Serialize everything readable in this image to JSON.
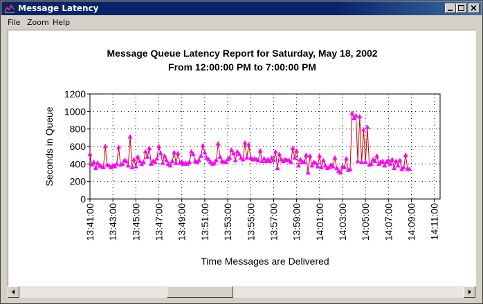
{
  "window": {
    "title": "Message Latency"
  },
  "menu": [
    "File",
    "Zoom",
    "Help"
  ],
  "colors": {
    "titlebar": "#0a246a",
    "series_line": "#cc0000",
    "series_marker": "#ff00ff"
  },
  "chart_data": {
    "type": "line",
    "title": "Message Queue Latency Report for Saturday, May 18, 2002",
    "subtitle": "From 12:00:00 PM to 7:00:00 PM",
    "xlabel": "Time Messages are Delivered",
    "ylabel": "Seconds in Queue",
    "ylim": [
      0,
      1200
    ],
    "yticks": [
      "0",
      "200",
      "400",
      "600",
      "800",
      "1000",
      "1200"
    ],
    "xlim": [
      "13:41:00",
      "14:11:30"
    ],
    "xticks": [
      "13:41:00",
      "13:43:00",
      "13:45:00",
      "13:47:00",
      "13:49:00",
      "13:51:00",
      "13:53:00",
      "13:55:00",
      "13:57:00",
      "13:59:00",
      "14:01:00",
      "14:03:00",
      "14:05:00",
      "14:07:00",
      "14:09:00",
      "14:11:00"
    ],
    "grid": true,
    "series": [
      {
        "values": [
          [
            "13:41:00",
            510
          ],
          [
            "13:41:10",
            390
          ],
          [
            "13:41:20",
            420
          ],
          [
            "13:41:30",
            350
          ],
          [
            "13:41:40",
            410
          ],
          [
            "13:41:50",
            380
          ],
          [
            "13:42:00",
            370
          ],
          [
            "13:42:10",
            360
          ],
          [
            "13:42:20",
            600
          ],
          [
            "13:42:30",
            390
          ],
          [
            "13:42:40",
            380
          ],
          [
            "13:42:50",
            360
          ],
          [
            "13:43:00",
            380
          ],
          [
            "13:43:10",
            370
          ],
          [
            "13:43:20",
            400
          ],
          [
            "13:43:30",
            590
          ],
          [
            "13:43:40",
            390
          ],
          [
            "13:43:50",
            400
          ],
          [
            "13:44:00",
            440
          ],
          [
            "13:44:10",
            430
          ],
          [
            "13:44:20",
            380
          ],
          [
            "13:44:30",
            710
          ],
          [
            "13:44:40",
            360
          ],
          [
            "13:44:50",
            450
          ],
          [
            "13:45:00",
            370
          ],
          [
            "13:45:10",
            480
          ],
          [
            "13:45:20",
            430
          ],
          [
            "13:45:30",
            400
          ],
          [
            "13:45:40",
            420
          ],
          [
            "13:45:50",
            540
          ],
          [
            "13:46:00",
            480
          ],
          [
            "13:46:10",
            580
          ],
          [
            "13:46:20",
            400
          ],
          [
            "13:46:30",
            430
          ],
          [
            "13:46:40",
            420
          ],
          [
            "13:46:50",
            460
          ],
          [
            "13:47:00",
            600
          ],
          [
            "13:47:10",
            520
          ],
          [
            "13:47:20",
            410
          ],
          [
            "13:47:30",
            490
          ],
          [
            "13:47:40",
            440
          ],
          [
            "13:47:50",
            400
          ],
          [
            "13:48:00",
            380
          ],
          [
            "13:48:10",
            430
          ],
          [
            "13:48:20",
            530
          ],
          [
            "13:48:30",
            410
          ],
          [
            "13:48:40",
            520
          ],
          [
            "13:48:50",
            410
          ],
          [
            "13:49:00",
            420
          ],
          [
            "13:49:10",
            400
          ],
          [
            "13:49:20",
            410
          ],
          [
            "13:49:30",
            400
          ],
          [
            "13:49:40",
            420
          ],
          [
            "13:49:50",
            540
          ],
          [
            "13:50:00",
            510
          ],
          [
            "13:50:10",
            430
          ],
          [
            "13:50:20",
            420
          ],
          [
            "13:50:30",
            440
          ],
          [
            "13:50:40",
            490
          ],
          [
            "13:50:50",
            610
          ],
          [
            "13:51:00",
            530
          ],
          [
            "13:51:10",
            470
          ],
          [
            "13:51:20",
            450
          ],
          [
            "13:51:30",
            420
          ],
          [
            "13:51:40",
            400
          ],
          [
            "13:51:50",
            410
          ],
          [
            "13:52:00",
            440
          ],
          [
            "13:52:10",
            630
          ],
          [
            "13:52:20",
            480
          ],
          [
            "13:52:30",
            430
          ],
          [
            "13:52:40",
            420
          ],
          [
            "13:52:50",
            420
          ],
          [
            "13:53:00",
            450
          ],
          [
            "13:53:10",
            470
          ],
          [
            "13:53:20",
            560
          ],
          [
            "13:53:30",
            520
          ],
          [
            "13:53:40",
            440
          ],
          [
            "13:53:50",
            540
          ],
          [
            "13:54:00",
            510
          ],
          [
            "13:54:10",
            470
          ],
          [
            "13:54:20",
            450
          ],
          [
            "13:54:30",
            640
          ],
          [
            "13:54:40",
            470
          ],
          [
            "13:54:50",
            620
          ],
          [
            "13:55:00",
            470
          ],
          [
            "13:55:10",
            450
          ],
          [
            "13:55:20",
            460
          ],
          [
            "13:55:30",
            450
          ],
          [
            "13:55:40",
            440
          ],
          [
            "13:55:50",
            550
          ],
          [
            "13:56:00",
            430
          ],
          [
            "13:56:10",
            460
          ],
          [
            "13:56:20",
            430
          ],
          [
            "13:56:30",
            450
          ],
          [
            "13:56:40",
            430
          ],
          [
            "13:56:50",
            470
          ],
          [
            "13:57:00",
            440
          ],
          [
            "13:57:10",
            540
          ],
          [
            "13:57:20",
            350
          ],
          [
            "13:57:30",
            510
          ],
          [
            "13:57:40",
            450
          ],
          [
            "13:57:50",
            430
          ],
          [
            "13:58:00",
            450
          ],
          [
            "13:58:10",
            440
          ],
          [
            "13:58:20",
            440
          ],
          [
            "13:58:30",
            420
          ],
          [
            "13:58:40",
            580
          ],
          [
            "13:58:50",
            470
          ],
          [
            "13:59:00",
            550
          ],
          [
            "13:59:10",
            380
          ],
          [
            "13:59:20",
            450
          ],
          [
            "13:59:30",
            420
          ],
          [
            "13:59:40",
            420
          ],
          [
            "13:59:50",
            500
          ],
          [
            "14:00:00",
            300
          ],
          [
            "14:00:10",
            490
          ],
          [
            "14:00:20",
            380
          ],
          [
            "14:00:30",
            420
          ],
          [
            "14:00:40",
            410
          ],
          [
            "14:00:50",
            370
          ],
          [
            "14:01:00",
            490
          ],
          [
            "14:01:10",
            360
          ],
          [
            "14:01:20",
            440
          ],
          [
            "14:01:30",
            380
          ],
          [
            "14:01:40",
            350
          ],
          [
            "14:01:50",
            360
          ],
          [
            "14:02:00",
            390
          ],
          [
            "14:02:10",
            370
          ],
          [
            "14:02:20",
            470
          ],
          [
            "14:02:30",
            350
          ],
          [
            "14:02:40",
            320
          ],
          [
            "14:02:50",
            300
          ],
          [
            "14:03:00",
            370
          ],
          [
            "14:03:10",
            360
          ],
          [
            "14:03:20",
            460
          ],
          [
            "14:03:30",
            330
          ],
          [
            "14:03:40",
            340
          ],
          [
            "14:03:50",
            980
          ],
          [
            "14:04:00",
            920
          ],
          [
            "14:04:10",
            950
          ],
          [
            "14:04:20",
            430
          ],
          [
            "14:04:30",
            940
          ],
          [
            "14:04:40",
            420
          ],
          [
            "14:04:50",
            790
          ],
          [
            "14:05:00",
            420
          ],
          [
            "14:05:10",
            820
          ],
          [
            "14:05:20",
            390
          ],
          [
            "14:05:30",
            400
          ],
          [
            "14:05:40",
            450
          ],
          [
            "14:05:50",
            430
          ],
          [
            "14:06:00",
            490
          ],
          [
            "14:06:10",
            400
          ],
          [
            "14:06:20",
            420
          ],
          [
            "14:06:30",
            430
          ],
          [
            "14:06:40",
            380
          ],
          [
            "14:06:50",
            420
          ],
          [
            "14:07:00",
            440
          ],
          [
            "14:07:10",
            400
          ],
          [
            "14:07:20",
            450
          ],
          [
            "14:07:30",
            350
          ],
          [
            "14:07:40",
            430
          ],
          [
            "14:07:50",
            380
          ],
          [
            "14:08:00",
            440
          ],
          [
            "14:08:10",
            340
          ],
          [
            "14:08:20",
            360
          ],
          [
            "14:08:30",
            500
          ],
          [
            "14:08:40",
            340
          ],
          [
            "14:08:50",
            340
          ]
        ]
      }
    ]
  }
}
